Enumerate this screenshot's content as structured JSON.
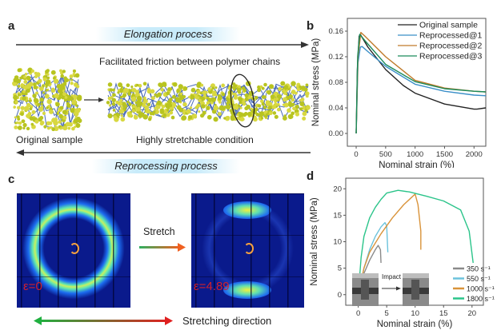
{
  "panel_a": {
    "label": "a",
    "elongation": "Elongation process",
    "friction_caption": "Facilitated friction between polymer chains",
    "original_label": "Original sample",
    "stretched_label": "Highly stretchable condition",
    "reprocessing": "Reprocessing process"
  },
  "panel_c": {
    "label": "c",
    "stretch": "Stretch",
    "eps_left": "ε=0",
    "eps_right": "ε=4.89",
    "direction": "Stretching direction"
  },
  "chart_data": [
    {
      "panel": "b",
      "type": "line",
      "xlabel": "Nominal strain (%)",
      "ylabel": "Nominal stress (MPa)",
      "xlim": [
        -150,
        2200
      ],
      "ylim": [
        -0.02,
        0.18
      ],
      "xticks": [
        0,
        500,
        1000,
        1500,
        2000
      ],
      "yticks": [
        "0.00",
        "0.04",
        "0.08",
        "0.12",
        "0.16"
      ],
      "legend": "top-right",
      "series": [
        {
          "name": "Original sample",
          "color": "#222222",
          "points": [
            [
              0,
              0
            ],
            [
              20,
              0.1
            ],
            [
              50,
              0.152
            ],
            [
              70,
              0.155
            ],
            [
              200,
              0.135
            ],
            [
              500,
              0.1
            ],
            [
              800,
              0.075
            ],
            [
              1000,
              0.063
            ],
            [
              1500,
              0.046
            ],
            [
              2000,
              0.038
            ],
            [
              2050,
              0.038
            ],
            [
              2200,
              0.04
            ]
          ]
        },
        {
          "name": "Reprocessed@1",
          "color": "#3a8fc8",
          "points": [
            [
              0,
              0
            ],
            [
              30,
              0.11
            ],
            [
              70,
              0.135
            ],
            [
              100,
              0.136
            ],
            [
              200,
              0.128
            ],
            [
              500,
              0.105
            ],
            [
              1000,
              0.077
            ],
            [
              1500,
              0.066
            ],
            [
              2000,
              0.06
            ],
            [
              2200,
              0.059
            ]
          ]
        },
        {
          "name": "Reprocessed@2",
          "color": "#c07a2a",
          "points": [
            [
              0,
              0
            ],
            [
              30,
              0.12
            ],
            [
              80,
              0.158
            ],
            [
              150,
              0.152
            ],
            [
              500,
              0.12
            ],
            [
              1000,
              0.083
            ],
            [
              1500,
              0.071
            ],
            [
              2000,
              0.066
            ],
            [
              2200,
              0.065
            ]
          ]
        },
        {
          "name": "Reprocessed@3",
          "color": "#1a8a5a",
          "points": [
            [
              0,
              0
            ],
            [
              25,
              0.12
            ],
            [
              60,
              0.155
            ],
            [
              150,
              0.145
            ],
            [
              500,
              0.108
            ],
            [
              1000,
              0.081
            ],
            [
              1500,
              0.07
            ],
            [
              2000,
              0.066
            ],
            [
              2200,
              0.065
            ]
          ]
        }
      ]
    },
    {
      "panel": "d",
      "type": "line",
      "xlabel": "Nominal strain (%)",
      "ylabel": "Nominal stress (MPa)",
      "xlim": [
        -2.2,
        22
      ],
      "ylim": [
        -2,
        22
      ],
      "xticks": [
        0,
        5,
        10,
        15,
        20
      ],
      "yticks": [
        0,
        5,
        10,
        15,
        20
      ],
      "legend": "bottom-right",
      "inset_label": "Impact",
      "series": [
        {
          "name": "350 s⁻¹",
          "color": "#8a8a8a",
          "points": [
            [
              0,
              0
            ],
            [
              1,
              4
            ],
            [
              2,
              6.5
            ],
            [
              3,
              8.5
            ],
            [
              3.5,
              9.3
            ],
            [
              3.9,
              8.5
            ],
            [
              4,
              6
            ]
          ]
        },
        {
          "name": "550 s⁻¹",
          "color": "#6cc3dc",
          "points": [
            [
              0,
              0
            ],
            [
              1,
              5
            ],
            [
              2,
              8.5
            ],
            [
              3,
              11
            ],
            [
              4,
              12.8
            ],
            [
              4.7,
              13.6
            ],
            [
              5,
              13
            ],
            [
              5.2,
              8
            ]
          ]
        },
        {
          "name": "1000 s⁻¹",
          "color": "#d9933a",
          "points": [
            [
              0,
              0
            ],
            [
              1,
              5
            ],
            [
              2,
              8
            ],
            [
              4,
              11.5
            ],
            [
              6,
              14.5
            ],
            [
              8,
              17
            ],
            [
              10,
              19
            ],
            [
              10.5,
              17
            ],
            [
              11,
              12
            ],
            [
              11,
              8.5
            ]
          ]
        },
        {
          "name": "1800 s⁻¹",
          "color": "#2bc48a",
          "points": [
            [
              0,
              0
            ],
            [
              0.5,
              7
            ],
            [
              1,
              11
            ],
            [
              2,
              14.5
            ],
            [
              3,
              16.5
            ],
            [
              4,
              18
            ],
            [
              5,
              19.2
            ],
            [
              7,
              19.7
            ],
            [
              9,
              19.4
            ],
            [
              12,
              18.6
            ],
            [
              15,
              17.7
            ],
            [
              18,
              16
            ],
            [
              19.5,
              12
            ],
            [
              20.2,
              6
            ]
          ]
        }
      ]
    }
  ]
}
